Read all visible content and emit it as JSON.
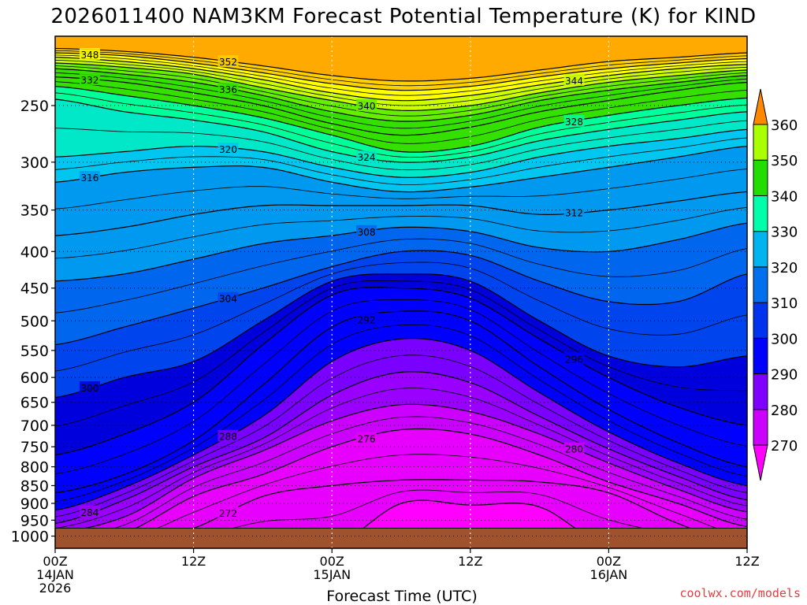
{
  "page": {
    "title": "2026011400 NAM3KM Forecast Potential Temperature (K) for KIND",
    "credit": "coolwx.com/models"
  },
  "chart_data": {
    "type": "heatmap",
    "title": "2026011400 NAM3KM Forecast Potential Temperature (K) for KIND",
    "xlabel": "Forecast Time (UTC)",
    "ylabel": "",
    "x_range_hours": [
      0,
      60
    ],
    "x_ticks": [
      {
        "hour": 0,
        "lines": [
          "00Z",
          "14JAN",
          "2026"
        ]
      },
      {
        "hour": 12,
        "lines": [
          "12Z"
        ]
      },
      {
        "hour": 24,
        "lines": [
          "00Z",
          "15JAN"
        ]
      },
      {
        "hour": 36,
        "lines": [
          "12Z"
        ]
      },
      {
        "hour": 48,
        "lines": [
          "00Z",
          "16JAN"
        ]
      },
      {
        "hour": 60,
        "lines": [
          "12Z"
        ]
      }
    ],
    "y_axis": "pressure (hPa), log scale",
    "y_ticks": [
      250,
      300,
      350,
      400,
      450,
      500,
      550,
      600,
      650,
      700,
      750,
      800,
      850,
      900,
      950,
      1000
    ],
    "y_range": [
      1040,
      200
    ],
    "colorbar": {
      "levels": [
        270,
        280,
        290,
        300,
        310,
        320,
        330,
        340,
        350,
        360
      ],
      "colors": [
        "#ff00ff",
        "#cc00ff",
        "#8000ff",
        "#0000ff",
        "#0033ee",
        "#0070ee",
        "#00b4f0",
        "#00ffaa",
        "#22dd00",
        "#aaff00",
        "#ffff00",
        "#ffbb00",
        "#ff8800"
      ]
    },
    "isentropes_time_hours": [
      0,
      6,
      12,
      18,
      24,
      30,
      36,
      42,
      48,
      54,
      60
    ],
    "isentropes_pressure_hpa": {
      "268": [
        null,
        null,
        null,
        null,
        null,
        900,
        905,
        910,
        null,
        null,
        null
      ],
      "272": [
        null,
        null,
        975,
        880,
        850,
        835,
        835,
        840,
        870,
        960,
        null
      ],
      "276": [
        null,
        990,
        880,
        820,
        750,
        710,
        720,
        770,
        840,
        900,
        970
      ],
      "280": [
        990,
        940,
        830,
        760,
        690,
        655,
        670,
        720,
        790,
        860,
        925
      ],
      "284": [
        960,
        890,
        800,
        730,
        635,
        590,
        610,
        680,
        755,
        825,
        890
      ],
      "288": [
        920,
        855,
        770,
        680,
        570,
        530,
        550,
        630,
        715,
        790,
        850
      ],
      "292": [
        870,
        820,
        735,
        615,
        510,
        485,
        500,
        580,
        665,
        740,
        800
      ],
      "296": [
        770,
        720,
        650,
        540,
        460,
        450,
        465,
        530,
        600,
        660,
        700
      ],
      "300": [
        640,
        600,
        570,
        500,
        440,
        430,
        440,
        500,
        560,
        580,
        560
      ],
      "304": [
        540,
        510,
        480,
        450,
        420,
        400,
        405,
        440,
        470,
        470,
        430
      ],
      "308": [
        440,
        430,
        410,
        390,
        380,
        370,
        375,
        395,
        400,
        385,
        365
      ],
      "312": [
        380,
        370,
        355,
        345,
        345,
        345,
        345,
        355,
        350,
        340,
        330
      ],
      "316": [
        320,
        310,
        305,
        305,
        320,
        330,
        325,
        315,
        305,
        295,
        285
      ],
      "320": [
        295,
        290,
        285,
        290,
        305,
        315,
        310,
        295,
        285,
        278,
        270
      ],
      "324": [
        245,
        255,
        262,
        272,
        290,
        300,
        295,
        280,
        270,
        262,
        255
      ],
      "328": [
        235,
        242,
        250,
        260,
        275,
        290,
        285,
        268,
        258,
        250,
        244
      ],
      "332": [
        228,
        232,
        240,
        250,
        265,
        275,
        268,
        255,
        246,
        238,
        232
      ],
      "336": [
        222,
        226,
        232,
        242,
        255,
        263,
        258,
        246,
        238,
        232,
        227
      ],
      "340": [
        218,
        221,
        226,
        236,
        246,
        254,
        250,
        240,
        232,
        227,
        223
      ],
      "344": [
        214,
        217,
        222,
        230,
        240,
        246,
        242,
        234,
        227,
        222,
        219
      ],
      "348": [
        211,
        213,
        218,
        225,
        233,
        238,
        235,
        228,
        222,
        218,
        215
      ],
      "352": [
        208,
        210,
        214,
        220,
        227,
        231,
        229,
        223,
        217,
        214,
        211
      ]
    },
    "ground_pressure_hpa": 975,
    "grid": true
  }
}
